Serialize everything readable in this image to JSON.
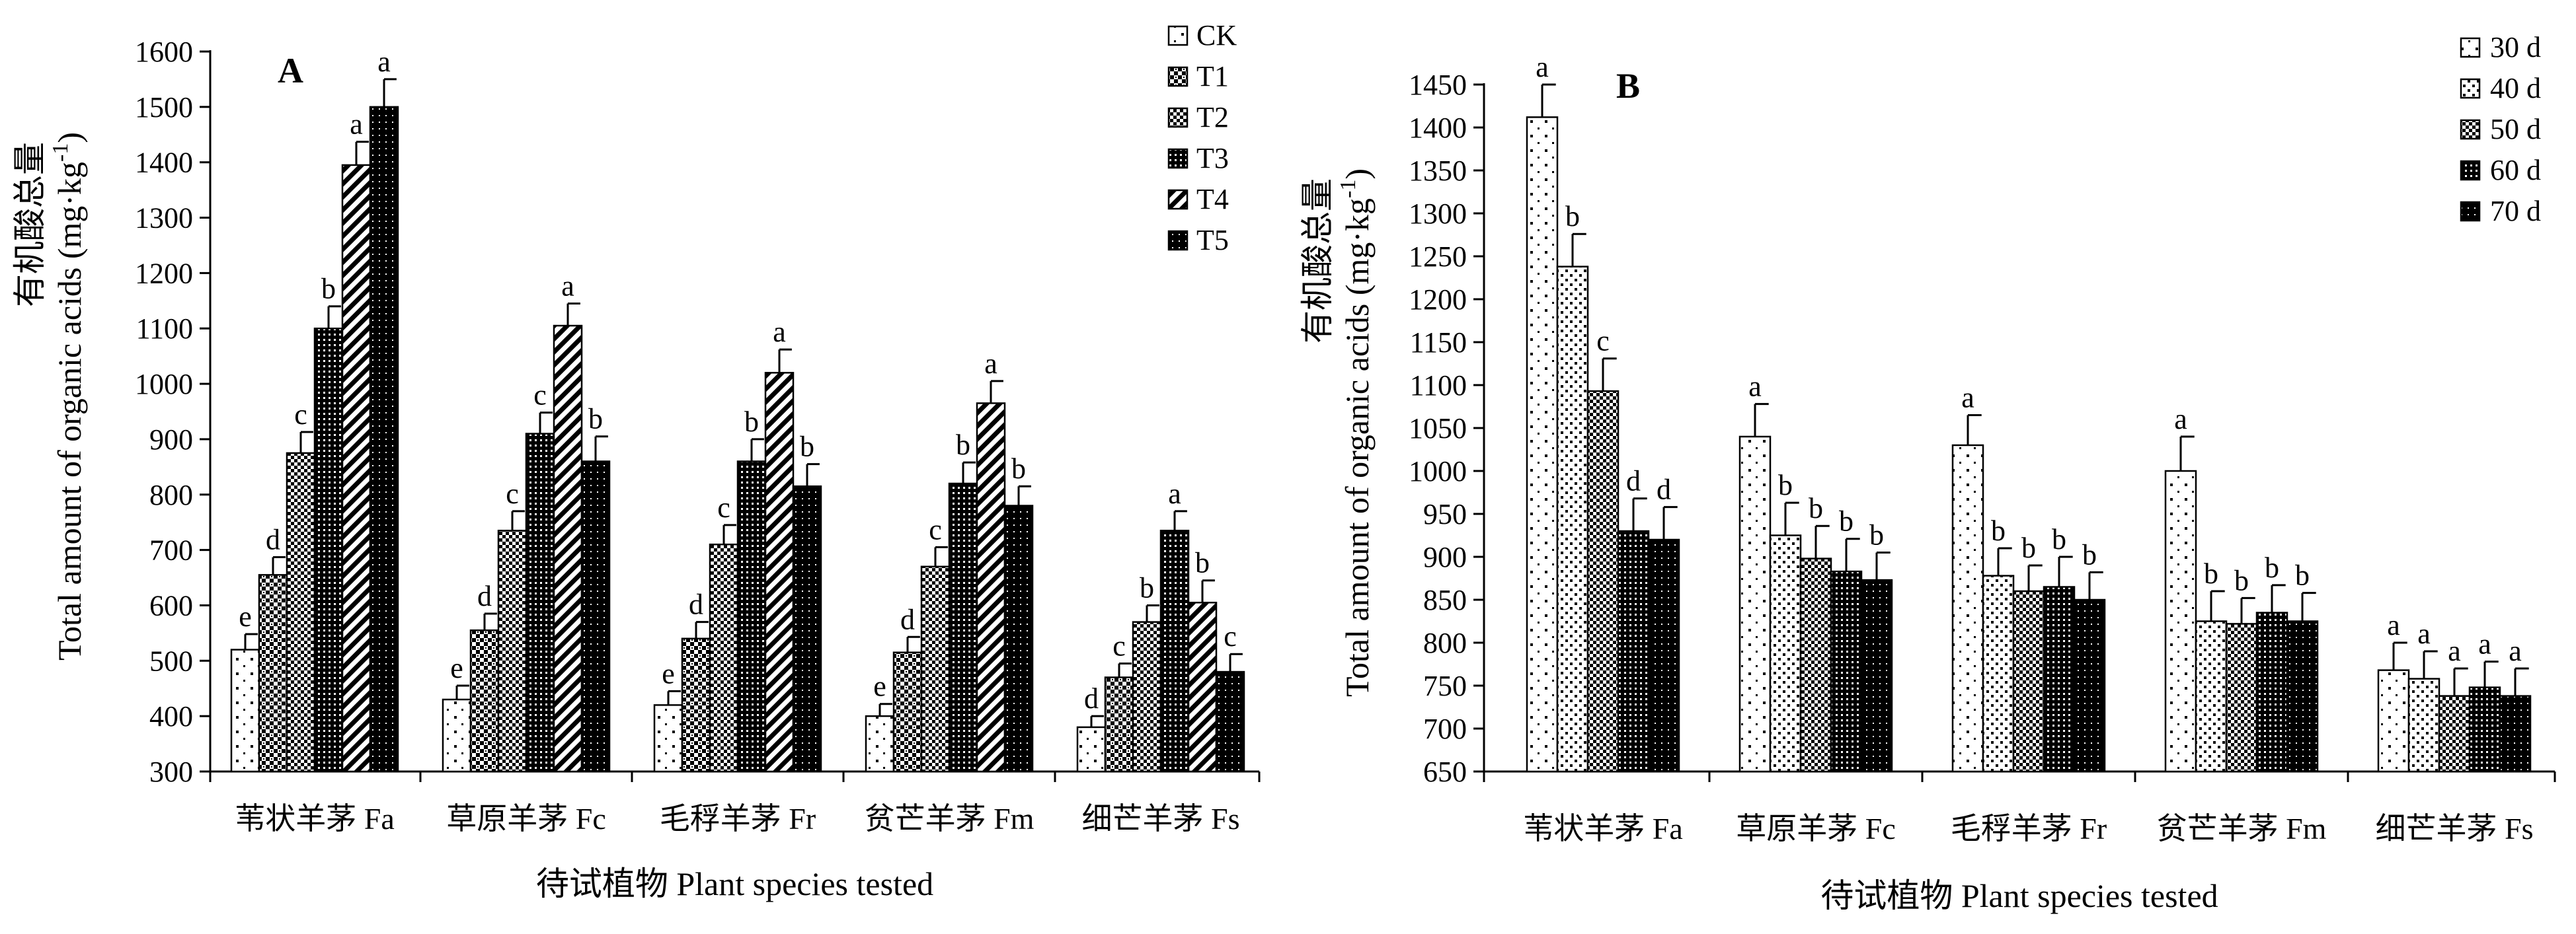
{
  "chart_data": [
    {
      "type": "bar",
      "panel_label": "A",
      "ylabel_cn": "有机酸总量",
      "ylabel_en": "Total amount of organic acids (mg·kg",
      "ylabel_sup": "-1",
      "ylabel_end": ")",
      "xlabel": "待试植物  Plant species tested",
      "ylim": [
        300,
        1600
      ],
      "yticks": [
        300,
        400,
        500,
        600,
        700,
        800,
        900,
        1000,
        1100,
        1200,
        1300,
        1400,
        1500,
        1600
      ],
      "categories": [
        "苇状羊茅  Fa",
        "草原羊茅  Fc",
        "毛稃羊茅  Fr",
        "贫芒羊茅  Fm",
        "细芒羊茅  Fs"
      ],
      "legend_position": "top-right",
      "series": [
        {
          "name": "CK",
          "values": [
            520,
            430,
            420,
            400,
            380
          ],
          "errors": [
            28,
            25,
            25,
            22,
            20
          ],
          "letters": [
            "e",
            "e",
            "e",
            "e",
            "d"
          ],
          "pattern": "dots"
        },
        {
          "name": "T1",
          "values": [
            655,
            555,
            540,
            515,
            470
          ],
          "errors": [
            32,
            30,
            30,
            28,
            25
          ],
          "letters": [
            "d",
            "d",
            "d",
            "d",
            "c"
          ],
          "pattern": "checker"
        },
        {
          "name": "T2",
          "values": [
            875,
            735,
            710,
            670,
            570
          ],
          "errors": [
            38,
            35,
            35,
            35,
            30
          ],
          "letters": [
            "c",
            "c",
            "c",
            "c",
            "b"
          ],
          "pattern": "grid"
        },
        {
          "name": "T3",
          "values": [
            1100,
            910,
            860,
            820,
            735
          ],
          "errors": [
            40,
            38,
            40,
            38,
            35
          ],
          "letters": [
            "b",
            "c",
            "b",
            "b",
            "a"
          ],
          "pattern": "dense"
        },
        {
          "name": "T4",
          "values": [
            1395,
            1105,
            1020,
            965,
            605
          ],
          "errors": [
            42,
            40,
            42,
            40,
            40
          ],
          "letters": [
            "a",
            "a",
            "a",
            "a",
            "b"
          ],
          "pattern": "hatch"
        },
        {
          "name": "T5",
          "values": [
            1500,
            860,
            815,
            780,
            480
          ],
          "errors": [
            50,
            45,
            40,
            35,
            32
          ],
          "letters": [
            "a",
            "b",
            "b",
            "b",
            "c"
          ],
          "pattern": "dark"
        }
      ]
    },
    {
      "type": "bar",
      "panel_label": "B",
      "ylabel_cn": "有机酸总量",
      "ylabel_en": "Total amount of organic acids (mg·kg",
      "ylabel_sup": "-1",
      "ylabel_end": ")",
      "xlabel": "待试植物 Plant species tested",
      "ylim": [
        650,
        1450
      ],
      "yticks": [
        650,
        700,
        750,
        800,
        850,
        900,
        950,
        1000,
        1050,
        1100,
        1150,
        1200,
        1250,
        1300,
        1350,
        1400,
        1450
      ],
      "categories": [
        "苇状羊茅  Fa",
        "草原羊茅  Fc",
        "毛稃羊茅  Fr",
        "贫芒羊茅  Fm",
        "细芒羊茅  Fs"
      ],
      "legend_position": "top-right",
      "series": [
        {
          "name": "30 d",
          "values": [
            1412,
            1040,
            1030,
            1000,
            768
          ],
          "errors": [
            38,
            38,
            35,
            40,
            32
          ],
          "letters": [
            "a",
            "a",
            "a",
            "a",
            "a"
          ],
          "pattern": "dots"
        },
        {
          "name": "40 d",
          "values": [
            1238,
            925,
            878,
            825,
            758
          ],
          "errors": [
            38,
            38,
            32,
            35,
            32
          ],
          "letters": [
            "b",
            "b",
            "b",
            "b",
            "a"
          ],
          "pattern": "stars"
        },
        {
          "name": "50 d",
          "values": [
            1093,
            898,
            860,
            822,
            738
          ],
          "errors": [
            38,
            38,
            30,
            30,
            32
          ],
          "letters": [
            "c",
            "b",
            "b",
            "b",
            "a"
          ],
          "pattern": "grid"
        },
        {
          "name": "60 d",
          "values": [
            930,
            883,
            865,
            835,
            748
          ],
          "errors": [
            38,
            38,
            35,
            32,
            30
          ],
          "letters": [
            "d",
            "b",
            "b",
            "b",
            "a"
          ],
          "pattern": "dense"
        },
        {
          "name": "70 d",
          "values": [
            920,
            873,
            850,
            825,
            738
          ],
          "errors": [
            38,
            32,
            32,
            33,
            32
          ],
          "letters": [
            "d",
            "b",
            "b",
            "b",
            "a"
          ],
          "pattern": "dark"
        }
      ]
    }
  ],
  "pattern_colors": {
    "fill_light": "#ffffff",
    "ink": "#000000"
  }
}
